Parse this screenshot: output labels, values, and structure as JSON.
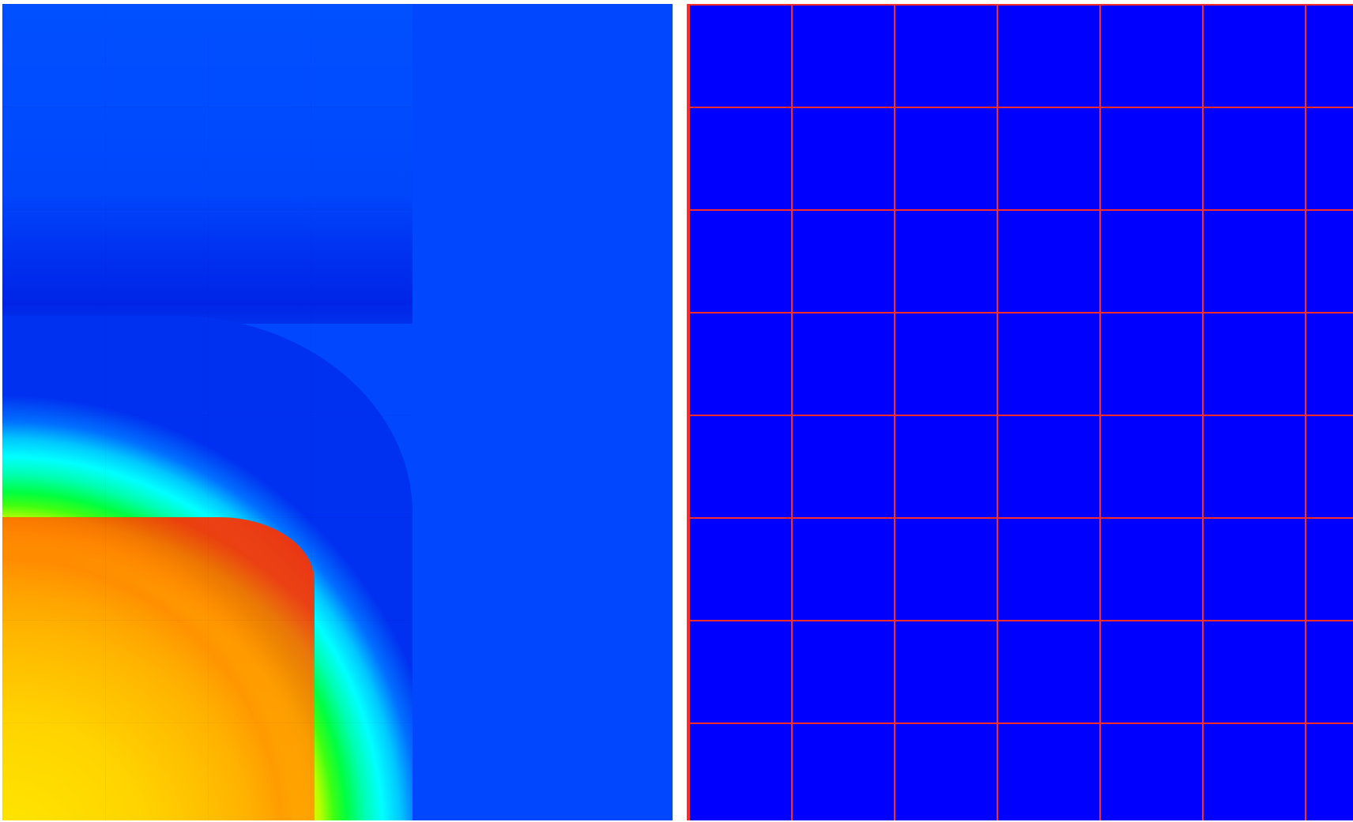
{
  "colors": {
    "background": "#ffffff",
    "field_base": "#0047fe",
    "mesh_fill": "#0000ff",
    "mesh_lines": "#ff2a2a"
  },
  "field_panel": {
    "description_key": "scalar-field-visualization"
  },
  "mesh_panel": {
    "columns_visible": 7,
    "rows_visible": 8
  }
}
